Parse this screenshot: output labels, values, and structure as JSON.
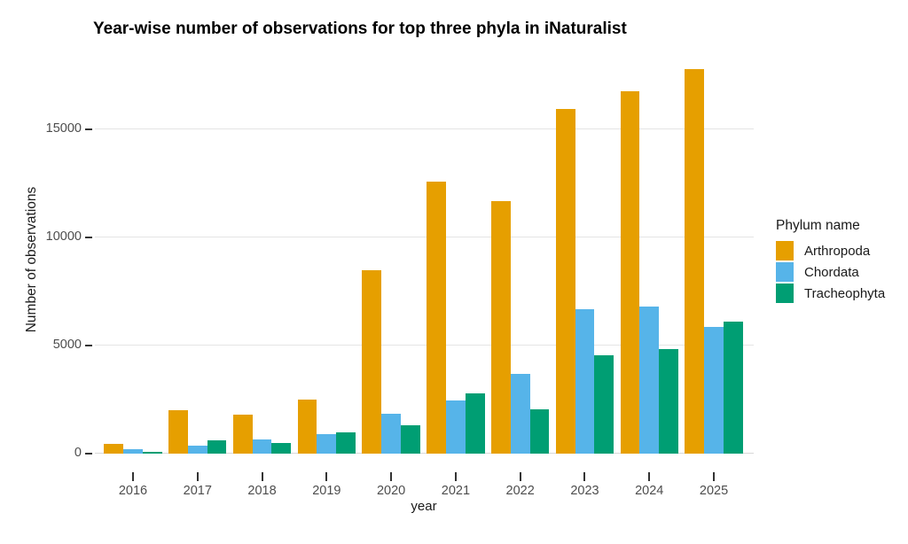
{
  "chart_data": {
    "type": "bar",
    "title": "Year-wise number of observations for top three phyla in iNaturalist",
    "xlabel": "year",
    "ylabel": "Number of observations",
    "categories": [
      "2016",
      "2017",
      "2018",
      "2019",
      "2020",
      "2021",
      "2022",
      "2023",
      "2024",
      "2025"
    ],
    "series": [
      {
        "name": "Arthropoda",
        "color": "#E69F00",
        "values": [
          450,
          2000,
          1800,
          2500,
          8500,
          12600,
          11700,
          15950,
          16750,
          17800
        ]
      },
      {
        "name": "Chordata",
        "color": "#56B4E9",
        "values": [
          220,
          380,
          650,
          890,
          1850,
          2450,
          3700,
          6700,
          6800,
          5850
        ]
      },
      {
        "name": "Tracheophyta",
        "color": "#009E73",
        "values": [
          90,
          600,
          500,
          1000,
          1300,
          2800,
          2050,
          4550,
          4850,
          6100
        ]
      }
    ],
    "yticks": [
      0,
      5000,
      10000,
      15000
    ],
    "ylim": [
      0,
      18500
    ],
    "grid": "horizontal-only",
    "legend": {
      "title": "Phylum name",
      "position": "right"
    }
  }
}
